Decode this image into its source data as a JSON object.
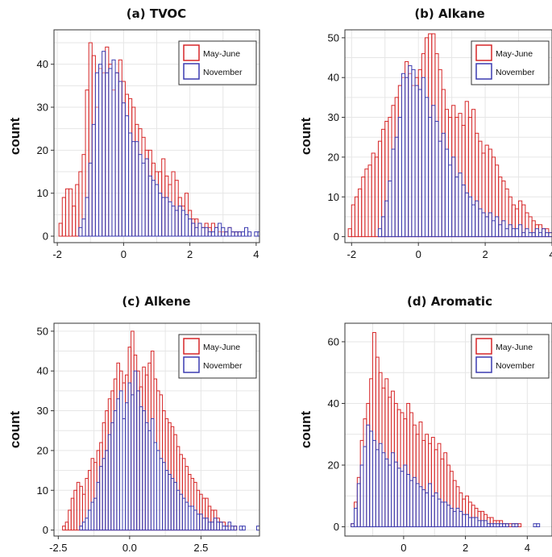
{
  "legend": {
    "labels": [
      "May-June",
      "November"
    ],
    "colors": [
      "#d62728",
      "#3b3bb0"
    ]
  },
  "chart_data": [
    {
      "type": "histogram",
      "title": "(a) TVOC",
      "ylabel": "count",
      "xlim": [
        -2.1,
        4.1
      ],
      "ylim": [
        -1.5,
        48
      ],
      "xticks": [
        -2,
        0,
        2,
        4
      ],
      "xtick_labels": [
        "-2",
        "0",
        "2",
        "4"
      ],
      "yticks": [
        0,
        10,
        20,
        30,
        40
      ],
      "grid": true,
      "legend_position": "top-right",
      "bin_start": -1.95,
      "bin_width": 0.1,
      "series": [
        {
          "name": "May-June",
          "values": [
            3,
            9,
            11,
            11,
            7,
            12,
            15,
            19,
            34,
            45,
            42,
            30,
            39,
            38,
            44,
            40,
            34,
            38,
            41,
            36,
            33,
            32,
            30,
            26,
            25,
            23,
            20,
            20,
            17,
            15,
            15,
            18,
            14,
            12,
            15,
            13,
            9,
            7,
            10,
            6,
            4,
            4,
            3,
            2,
            3,
            2,
            3,
            2,
            1,
            1,
            1,
            2,
            1,
            1,
            1,
            0,
            0,
            0,
            0,
            0,
            0
          ]
        },
        {
          "name": "November",
          "values": [
            0,
            0,
            0,
            0,
            0,
            0,
            2,
            4,
            9,
            17,
            26,
            38,
            40,
            43,
            38,
            39,
            41,
            38,
            36,
            31,
            28,
            24,
            22,
            22,
            19,
            17,
            18,
            14,
            13,
            12,
            10,
            9,
            9,
            8,
            7,
            6,
            7,
            6,
            5,
            4,
            3,
            2,
            3,
            2,
            2,
            1,
            1,
            2,
            3,
            2,
            1,
            2,
            1,
            1,
            1,
            1,
            2,
            1,
            0,
            1,
            1
          ]
        }
      ]
    },
    {
      "type": "histogram",
      "title": "(b) Alkane",
      "ylabel": "count",
      "xlim": [
        -2.2,
        4.0
      ],
      "ylim": [
        -1.5,
        52
      ],
      "xticks": [
        -2,
        0,
        2,
        4
      ],
      "xtick_labels": [
        "-2",
        "0",
        "2",
        "4"
      ],
      "yticks": [
        0,
        10,
        20,
        30,
        40,
        50
      ],
      "grid": true,
      "legend_position": "top-right",
      "bin_start": -2.1,
      "bin_width": 0.1,
      "series": [
        {
          "name": "May-June",
          "values": [
            2,
            8,
            10,
            12,
            15,
            17,
            18,
            21,
            20,
            24,
            27,
            29,
            30,
            33,
            35,
            38,
            40,
            44,
            41,
            38,
            40,
            42,
            46,
            50,
            51,
            51,
            46,
            42,
            37,
            32,
            30,
            33,
            30,
            31,
            28,
            34,
            30,
            32,
            26,
            24,
            21,
            23,
            22,
            20,
            18,
            15,
            14,
            12,
            10,
            8,
            7,
            9,
            8,
            6,
            5,
            4,
            3,
            3,
            2,
            2,
            1,
            0
          ]
        },
        {
          "name": "November",
          "values": [
            0,
            0,
            0,
            0,
            0,
            0,
            0,
            0,
            0,
            2,
            5,
            9,
            14,
            22,
            25,
            30,
            41,
            40,
            43,
            42,
            38,
            37,
            40,
            35,
            30,
            33,
            29,
            24,
            26,
            22,
            18,
            20,
            15,
            16,
            13,
            11,
            10,
            8,
            9,
            7,
            6,
            5,
            6,
            4,
            5,
            3,
            4,
            2,
            3,
            2,
            2,
            3,
            1,
            2,
            1,
            1,
            2,
            1,
            2,
            1,
            1,
            1
          ]
        }
      ]
    },
    {
      "type": "histogram",
      "title": "(c) Alkene",
      "ylabel": "count",
      "xlim": [
        -2.65,
        4.55
      ],
      "ylim": [
        -1.5,
        52
      ],
      "xticks": [
        -2.5,
        0.0,
        2.5
      ],
      "xtick_labels": [
        "-2.5",
        "0.0",
        "2.5"
      ],
      "yticks": [
        0,
        10,
        20,
        30,
        40,
        50
      ],
      "grid": true,
      "legend_position": "top-right",
      "bin_start": -2.35,
      "bin_width": 0.1,
      "series": [
        {
          "name": "May-June",
          "values": [
            1,
            2,
            5,
            8,
            10,
            12,
            11,
            9,
            13,
            15,
            18,
            17,
            20,
            22,
            27,
            30,
            33,
            35,
            38,
            42,
            40,
            37,
            39,
            46,
            50,
            44,
            40,
            36,
            41,
            39,
            42,
            45,
            38,
            35,
            34,
            30,
            28,
            27,
            26,
            24,
            21,
            19,
            18,
            16,
            14,
            13,
            12,
            10,
            9,
            8,
            8,
            6,
            5,
            5,
            3,
            2,
            2,
            1,
            1,
            0,
            1,
            0,
            0,
            0,
            0,
            0,
            0,
            0,
            0,
            0,
            0,
            0,
            0
          ]
        },
        {
          "name": "November",
          "values": [
            0,
            0,
            0,
            0,
            0,
            0,
            1,
            2,
            3,
            5,
            7,
            8,
            12,
            16,
            18,
            20,
            24,
            27,
            30,
            33,
            35,
            28,
            32,
            37,
            34,
            40,
            35,
            31,
            30,
            27,
            25,
            28,
            22,
            20,
            18,
            17,
            15,
            14,
            13,
            12,
            10,
            9,
            8,
            7,
            6,
            6,
            5,
            4,
            4,
            3,
            3,
            2,
            2,
            3,
            2,
            2,
            1,
            1,
            2,
            1,
            1,
            0,
            1,
            1,
            0,
            0,
            0,
            0,
            1,
            2,
            0,
            2,
            2
          ]
        }
      ]
    },
    {
      "type": "histogram",
      "title": "(d) Aromatic",
      "ylabel": "count",
      "xlim": [
        -1.9,
        4.8
      ],
      "ylim": [
        -3,
        66
      ],
      "xticks": [
        0,
        2,
        4
      ],
      "xtick_labels": [
        "0",
        "2",
        "4"
      ],
      "yticks": [
        0,
        20,
        40,
        60
      ],
      "grid": true,
      "legend_position": "top-right",
      "bin_start": -1.7,
      "bin_width": 0.1,
      "series": [
        {
          "name": "May-June",
          "values": [
            1,
            8,
            16,
            28,
            35,
            40,
            48,
            63,
            55,
            50,
            45,
            48,
            42,
            44,
            40,
            38,
            37,
            35,
            40,
            37,
            33,
            30,
            34,
            28,
            30,
            27,
            29,
            25,
            27,
            22,
            24,
            20,
            18,
            15,
            13,
            11,
            9,
            10,
            8,
            7,
            6,
            5,
            5,
            4,
            3,
            3,
            2,
            2,
            2,
            1,
            1,
            1,
            1,
            1,
            1,
            0,
            0,
            0,
            0,
            0,
            0,
            0,
            0,
            0,
            0,
            0,
            0
          ]
        },
        {
          "name": "November",
          "values": [
            1,
            6,
            14,
            20,
            26,
            33,
            31,
            28,
            25,
            27,
            24,
            22,
            20,
            24,
            21,
            19,
            18,
            20,
            17,
            15,
            16,
            14,
            13,
            12,
            11,
            14,
            10,
            11,
            9,
            8,
            8,
            7,
            6,
            5,
            6,
            5,
            4,
            4,
            3,
            3,
            3,
            2,
            2,
            2,
            1,
            1,
            1,
            1,
            1,
            1,
            1,
            0,
            1,
            1,
            0,
            0,
            0,
            0,
            0,
            1,
            1,
            0,
            0,
            0,
            0,
            1,
            1
          ]
        }
      ]
    }
  ]
}
